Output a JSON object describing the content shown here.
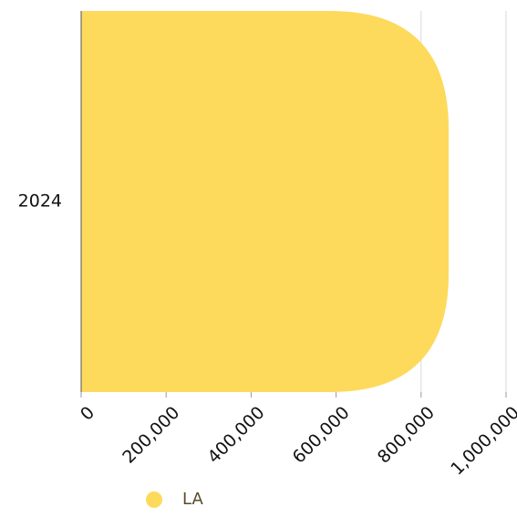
{
  "chart_data": {
    "type": "bar",
    "orientation": "horizontal",
    "categories": [
      "2024"
    ],
    "series": [
      {
        "name": "LA",
        "values": [
          865000
        ],
        "color": "#FDDA5C"
      }
    ],
    "xlim": [
      0,
      1000000
    ],
    "x_ticks": [
      0,
      200000,
      400000,
      600000,
      800000,
      1000000
    ],
    "x_tick_labels": [
      "0",
      "200,000",
      "400,000",
      "600,000",
      "800,000",
      "1,000,000"
    ],
    "grid": true,
    "legend_position": "bottom-left"
  }
}
